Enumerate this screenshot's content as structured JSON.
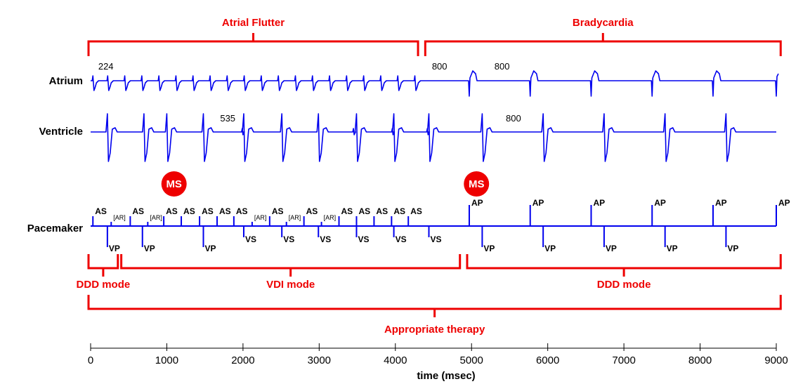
{
  "colors": {
    "signal": "#0000ee",
    "annotation": "#ee0000",
    "text": "#000000"
  },
  "rows": {
    "atrium": "Atrium",
    "ventricle": "Ventricle",
    "pacemaker": "Pacemaker"
  },
  "top_brackets": [
    {
      "label": "Atrial Flutter",
      "start_ms": 0,
      "end_ms": 4270
    },
    {
      "label": "Bradycardia",
      "start_ms": 4420,
      "end_ms": 9030
    }
  ],
  "bottom_brackets": [
    {
      "label": "DDD mode",
      "start_ms": 0,
      "end_ms": 330
    },
    {
      "label": "VDI mode",
      "start_ms": 430,
      "end_ms": 4820
    },
    {
      "label": "DDD mode",
      "start_ms": 4970,
      "end_ms": 9030
    }
  ],
  "therapy": {
    "label": "Appropriate therapy",
    "start_ms": 0,
    "end_ms": 9030
  },
  "ms_markers": [
    {
      "label": "MS",
      "time_ms": 1030
    },
    {
      "label": "MS",
      "time_ms": 5000
    }
  ],
  "interval_labels": [
    {
      "row": "atrium",
      "text": "224",
      "time_ms": 100
    },
    {
      "row": "atrium",
      "text": "800",
      "time_ms": 4480
    },
    {
      "row": "atrium",
      "text": "800",
      "time_ms": 5300
    },
    {
      "row": "ventricle",
      "text": "535",
      "time_ms": 1700
    },
    {
      "row": "ventricle",
      "text": "800",
      "time_ms": 5450
    }
  ],
  "atrial_flutter_times_ms": [
    30,
    224,
    448,
    672,
    896,
    1120,
    1344,
    1568,
    1792,
    2016,
    2240,
    2464,
    2688,
    2912,
    3136,
    3360,
    3584,
    3808,
    4032,
    4256
  ],
  "atrial_paced_times_ms": [
    4970,
    5770,
    6570,
    7370,
    8170,
    9000
  ],
  "ventricular_times_ms": [
    220,
    700,
    1000,
    1480,
    2010,
    2510,
    2990,
    3490,
    3980,
    4440,
    5140,
    5940,
    6740,
    7540,
    8340
  ],
  "ventricular_small_times_ms": [
    1990,
    3450,
    3960,
    4420
  ],
  "pacemaker_events": {
    "atrial": [
      {
        "label": "AS",
        "time_ms": 30
      },
      {
        "label": "[AR]",
        "time_ms": 270,
        "refractory": true
      },
      {
        "label": "AS",
        "time_ms": 520
      },
      {
        "label": "[AR]",
        "time_ms": 750,
        "refractory": true
      },
      {
        "label": "AS",
        "time_ms": 960
      },
      {
        "label": "AS",
        "time_ms": 1190
      },
      {
        "label": "AS",
        "time_ms": 1430
      },
      {
        "label": "AS",
        "time_ms": 1660
      },
      {
        "label": "AS",
        "time_ms": 1880
      },
      {
        "label": "[AR]",
        "time_ms": 2120,
        "refractory": true
      },
      {
        "label": "AS",
        "time_ms": 2350
      },
      {
        "label": "[AR]",
        "time_ms": 2570,
        "refractory": true
      },
      {
        "label": "AS",
        "time_ms": 2800
      },
      {
        "label": "[AR]",
        "time_ms": 3030,
        "refractory": true
      },
      {
        "label": "AS",
        "time_ms": 3260
      },
      {
        "label": "AS",
        "time_ms": 3490
      },
      {
        "label": "AS",
        "time_ms": 3720
      },
      {
        "label": "AS",
        "time_ms": 3950
      },
      {
        "label": "AS",
        "time_ms": 4170
      },
      {
        "label": "AP",
        "time_ms": 4970
      },
      {
        "label": "AP",
        "time_ms": 5770
      },
      {
        "label": "AP",
        "time_ms": 6570
      },
      {
        "label": "AP",
        "time_ms": 7370
      },
      {
        "label": "AP",
        "time_ms": 8170
      },
      {
        "label": "AP",
        "time_ms": 9000
      }
    ],
    "ventricular": [
      {
        "label": "VP",
        "time_ms": 220
      },
      {
        "label": "VP",
        "time_ms": 680
      },
      {
        "label": "VP",
        "time_ms": 1480
      },
      {
        "label": "VS",
        "time_ms": 2010
      },
      {
        "label": "VS",
        "time_ms": 2510
      },
      {
        "label": "VS",
        "time_ms": 2990
      },
      {
        "label": "VS",
        "time_ms": 3490
      },
      {
        "label": "VS",
        "time_ms": 3980
      },
      {
        "label": "VS",
        "time_ms": 4440
      },
      {
        "label": "VP",
        "time_ms": 5140
      },
      {
        "label": "VP",
        "time_ms": 5940
      },
      {
        "label": "VP",
        "time_ms": 6740
      },
      {
        "label": "VP",
        "time_ms": 7540
      },
      {
        "label": "VP",
        "time_ms": 8340
      }
    ]
  },
  "axis": {
    "label": "time (msec)",
    "min": 0,
    "max": 9000,
    "ticks": [
      0,
      1000,
      2000,
      3000,
      4000,
      5000,
      6000,
      7000,
      8000,
      9000
    ]
  }
}
